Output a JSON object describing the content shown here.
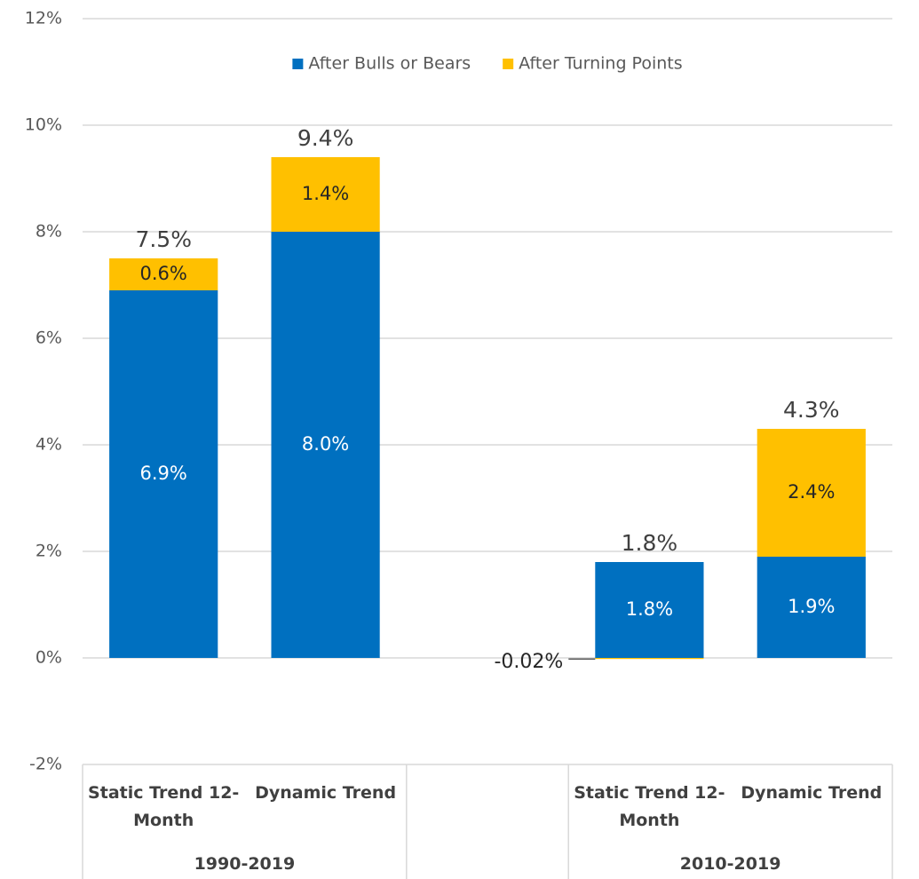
{
  "chart_data": {
    "type": "stacked_bar",
    "categories": [
      "Static Trend 12-Month",
      "Dynamic Trend",
      null,
      "Static Trend 12-Month",
      "Dynamic Trend"
    ],
    "group_labels": [
      "1990-2019",
      null,
      "2010-2019"
    ],
    "series": [
      {
        "name": "After Bulls or Bears",
        "color": "#0070c0",
        "label_color": "#ffffff",
        "values": [
          6.9,
          8.0,
          null,
          1.8,
          1.9
        ],
        "value_labels": [
          "6.9%",
          "8.0%",
          null,
          "1.8%",
          "1.9%"
        ]
      },
      {
        "name": "After Turning Points",
        "color": "#ffc000",
        "label_color": "#262626",
        "values": [
          0.6,
          1.4,
          null,
          -0.02,
          2.4
        ],
        "value_labels": [
          "0.6%",
          "1.4%",
          null,
          "-0.02%",
          "2.4%"
        ]
      }
    ],
    "totals": [
      7.5,
      9.4,
      null,
      1.8,
      4.3
    ],
    "total_labels": [
      "7.5%",
      "9.4%",
      null,
      "1.8%",
      "4.3%"
    ],
    "ylim": [
      -2,
      12
    ],
    "yticks": [
      {
        "value": -2,
        "label": "-2%"
      },
      {
        "value": 0,
        "label": "0%"
      },
      {
        "value": 2,
        "label": "2%"
      },
      {
        "value": 4,
        "label": "4%"
      },
      {
        "value": 6,
        "label": "6%"
      },
      {
        "value": 8,
        "label": "8%"
      },
      {
        "value": 10,
        "label": "10%"
      },
      {
        "value": 12,
        "label": "12%"
      }
    ],
    "grid": true,
    "legend": "top"
  }
}
